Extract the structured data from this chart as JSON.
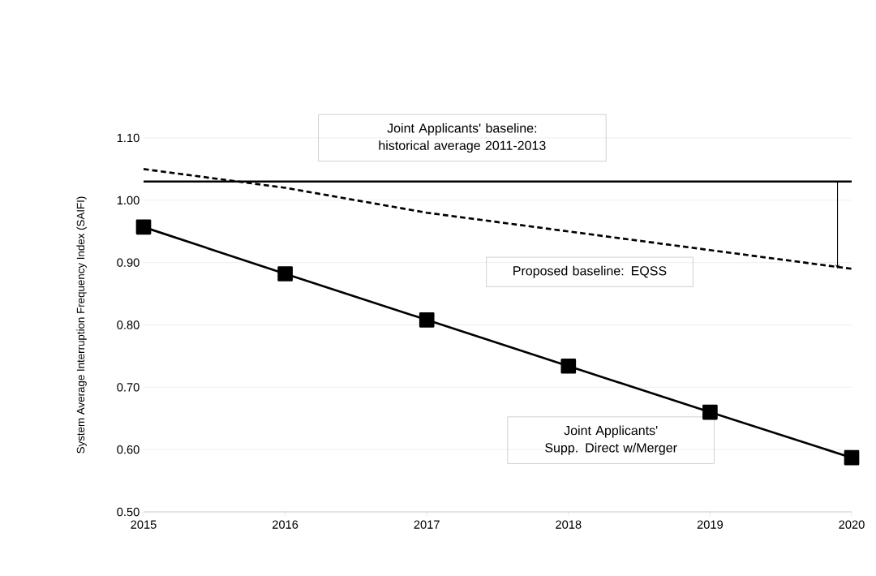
{
  "chart_data": {
    "type": "line",
    "ylabel": "System Average Interruption Frequency Index (SAIFI)",
    "categories": [
      "2015",
      "2016",
      "2017",
      "2018",
      "2019",
      "2020"
    ],
    "series": [
      {
        "name": "Joint Applicants' Supp. Direct w/Merger",
        "color": "#000000",
        "values": [
          0.957,
          0.882,
          0.808,
          0.734,
          0.66,
          0.587
        ],
        "marker": "square",
        "line_style": "solid"
      },
      {
        "name": "Proposed baseline: EQSS",
        "color": "#000000",
        "values": [
          1.05,
          1.02,
          0.98,
          0.95,
          0.92,
          0.89
        ],
        "marker": "none",
        "line_style": "dashed"
      }
    ],
    "ref_lines": [
      {
        "axis": "y",
        "value": 1.03,
        "label": "Joint Applicants' baseline: historical average 2011-2013",
        "color": "#000000"
      }
    ],
    "ylim": [
      0.5,
      1.1
    ],
    "yticks": [
      {
        "value": 0.5,
        "label": "0.50"
      },
      {
        "value": 0.6,
        "label": "0.60"
      },
      {
        "value": 0.7,
        "label": "0.70"
      },
      {
        "value": 0.8,
        "label": "0.80"
      },
      {
        "value": 0.9,
        "label": "0.90"
      },
      {
        "value": 1.0,
        "label": "1.00"
      },
      {
        "value": 1.1,
        "label": "1.10"
      }
    ],
    "grid": "y"
  }
}
